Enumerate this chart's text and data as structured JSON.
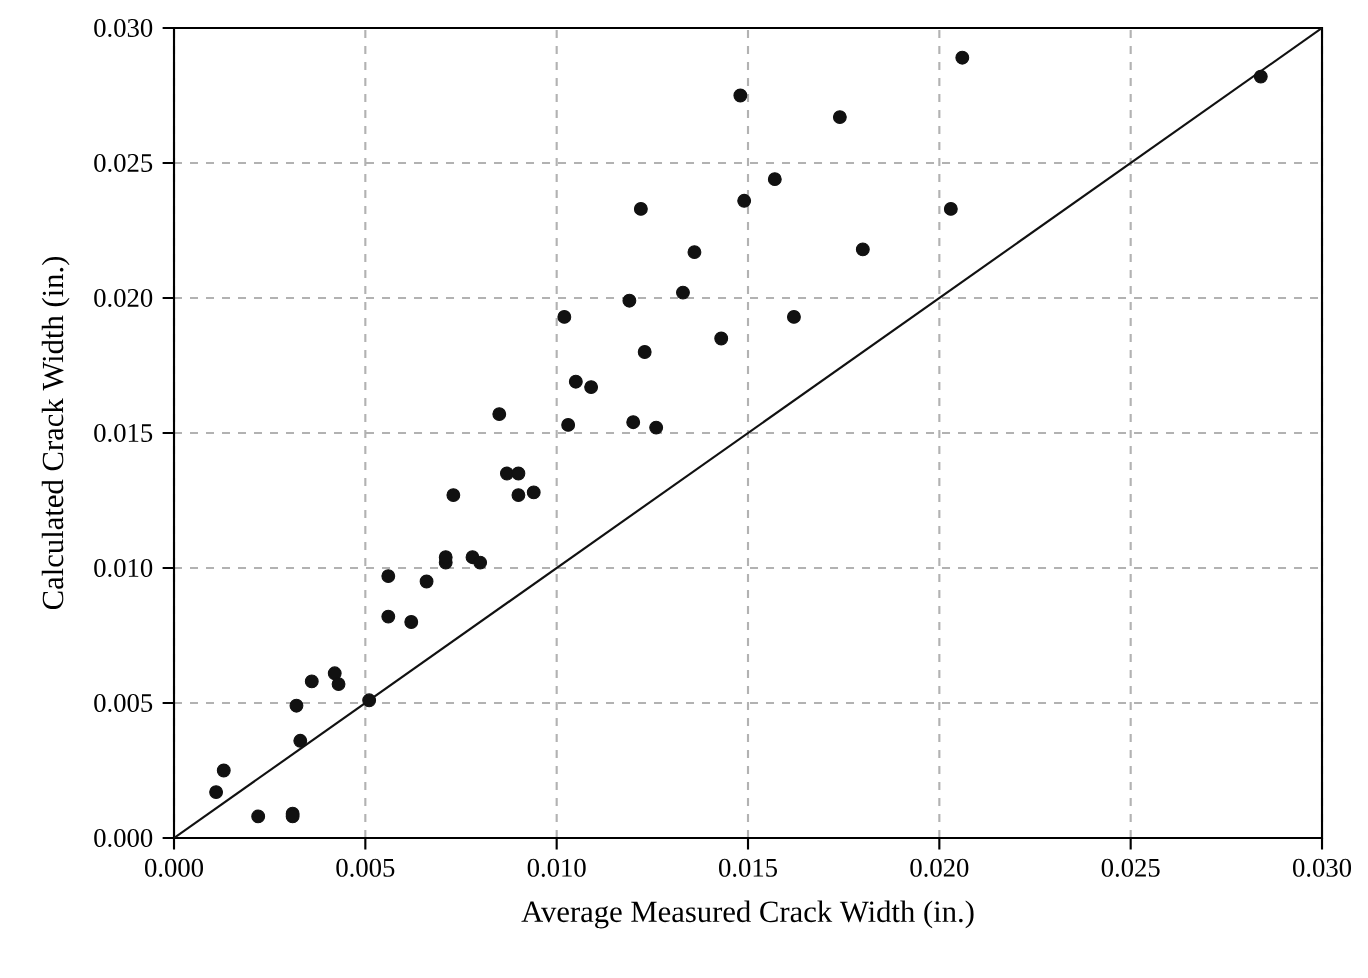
{
  "chart_data": {
    "type": "scatter",
    "xlabel": "Average Measured Crack Width (in.)",
    "ylabel": "Calculated Crack Width (in.)",
    "xlim": [
      0,
      0.03
    ],
    "ylim": [
      0,
      0.03
    ],
    "xticks": [
      {
        "value": 0,
        "label": "0.000"
      },
      {
        "value": 0.005,
        "label": "0.005"
      },
      {
        "value": 0.01,
        "label": "0.010"
      },
      {
        "value": 0.015,
        "label": "0.015"
      },
      {
        "value": 0.02,
        "label": "0.020"
      },
      {
        "value": 0.025,
        "label": "0.025"
      },
      {
        "value": 0.03,
        "label": "0.030"
      }
    ],
    "yticks": [
      {
        "value": 0,
        "label": "0.000"
      },
      {
        "value": 0.005,
        "label": "0.005"
      },
      {
        "value": 0.01,
        "label": "0.010"
      },
      {
        "value": 0.015,
        "label": "0.015"
      },
      {
        "value": 0.02,
        "label": "0.020"
      },
      {
        "value": 0.025,
        "label": "0.025"
      },
      {
        "value": 0.03,
        "label": "0.030"
      }
    ],
    "grid": true,
    "marker": "circle",
    "series": [
      {
        "color": "#111111",
        "x": [
          0.0011,
          0.0013,
          0.0022,
          0.0031,
          0.0031,
          0.0033,
          0.0032,
          0.0036,
          0.0042,
          0.0043,
          0.0051,
          0.0056,
          0.0062,
          0.0056,
          0.0066,
          0.0071,
          0.0071,
          0.0078,
          0.008,
          0.0073,
          0.009,
          0.0094,
          0.0085,
          0.0087,
          0.009,
          0.0102,
          0.0103,
          0.0105,
          0.0109,
          0.0119,
          0.0133,
          0.0123,
          0.012,
          0.0126,
          0.0143,
          0.0162,
          0.0148,
          0.0206,
          0.0284,
          0.0174,
          0.0157,
          0.0149,
          0.0203,
          0.0136,
          0.018,
          0.0122
        ],
        "values": [
          0.0017,
          0.0025,
          0.0008,
          0.0009,
          0.0008,
          0.0036,
          0.0049,
          0.0058,
          0.0061,
          0.0057,
          0.0051,
          0.0082,
          0.008,
          0.0097,
          0.0095,
          0.0102,
          0.0104,
          0.0104,
          0.0102,
          0.0127,
          0.0127,
          0.0128,
          0.0157,
          0.0135,
          0.0135,
          0.0193,
          0.0153,
          0.0169,
          0.0167,
          0.0199,
          0.0202,
          0.018,
          0.0154,
          0.0152,
          0.0185,
          0.0193,
          0.0275,
          0.0289,
          0.0282,
          0.0267,
          0.0244,
          0.0236,
          0.0233,
          0.0217,
          0.0218,
          0.0233
        ]
      },
      {
        "type": "line",
        "color": "#111111",
        "marker": "none",
        "line_style": "solid",
        "x": [
          0,
          0.03
        ],
        "values": [
          0,
          0.03
        ]
      }
    ]
  }
}
